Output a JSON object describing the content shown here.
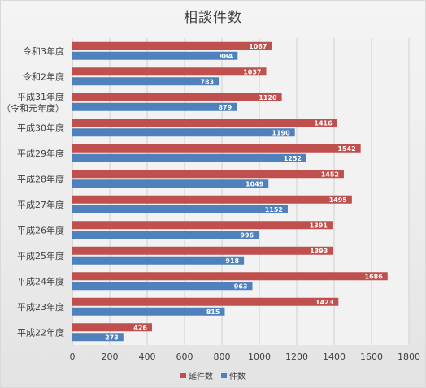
{
  "chart_data": {
    "type": "bar",
    "orientation": "horizontal",
    "title": "相談件数",
    "categories": [
      "令和3年度",
      "令和2年度",
      "平成31年度\n（令和元年度）",
      "平成30年度",
      "平成29年度",
      "平成28年度",
      "平成27年度",
      "平成26年度",
      "平成25年度",
      "平成24年度",
      "平成23年度",
      "平成22年度"
    ],
    "series": [
      {
        "name": "延件数",
        "color": "#c0504d",
        "values": [
          1067,
          1037,
          1120,
          1416,
          1542,
          1452,
          1495,
          1391,
          1393,
          1686,
          1423,
          426
        ]
      },
      {
        "name": "件数",
        "color": "#4f81bd",
        "values": [
          884,
          783,
          879,
          1190,
          1252,
          1049,
          1152,
          996,
          918,
          963,
          815,
          273
        ]
      }
    ],
    "xlim": [
      0,
      1800
    ],
    "xticks": [
      "0",
      "200",
      "400",
      "600",
      "800",
      "1000",
      "1200",
      "1400",
      "1600",
      "1800"
    ],
    "grid": true,
    "legend_position": "bottom"
  }
}
